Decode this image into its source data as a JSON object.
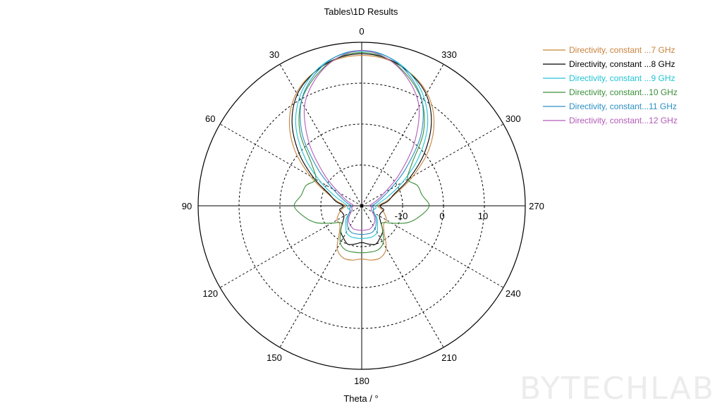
{
  "title": "Tables\\1D Results",
  "axis_label": "Theta / °",
  "watermark": "BYTECHLAB",
  "chart_data": {
    "type": "line",
    "polar": true,
    "title": "Tables\\1D Results",
    "xlabel": "Theta / °",
    "angle_ticks": [
      "0",
      "30",
      "60",
      "90",
      "120",
      "150",
      "180",
      "210",
      "240",
      "270",
      "300",
      "330"
    ],
    "angle_direction": "counter-clockwise, 0 at top",
    "radial_ticks": [
      "-10",
      "0",
      "10"
    ],
    "radial_range": [
      -20,
      20
    ],
    "legend_position": "top-right",
    "grid": true,
    "theta": [
      0,
      10,
      20,
      30,
      40,
      50,
      60,
      70,
      80,
      90,
      100,
      110,
      120,
      130,
      140,
      150,
      160,
      170,
      180,
      190,
      200,
      210,
      220,
      230,
      240,
      250,
      260,
      270,
      280,
      290,
      300,
      310,
      320,
      330,
      340,
      350
    ],
    "series": [
      {
        "name": "Directivity, constant ...7 GHz",
        "color": "#c8833c",
        "values": [
          16.8,
          16.3,
          14.6,
          11.9,
          7.5,
          1.5,
          -5.5,
          -11,
          -14,
          -16,
          -15,
          -14,
          -13,
          -13,
          -11.5,
          -8,
          -6.5,
          -6.5,
          -7,
          -6.5,
          -6.5,
          -8,
          -11.5,
          -13,
          -13,
          -14,
          -15,
          -16,
          -14,
          -11,
          -5.5,
          1.5,
          7.5,
          11.9,
          14.6,
          16.3
        ]
      },
      {
        "name": "Directivity, constant ...8 GHz",
        "color": "#000000",
        "values": [
          17.2,
          16.5,
          14.5,
          11.5,
          6.5,
          0,
          -6.5,
          -11.5,
          -13.5,
          -15.5,
          -14.5,
          -15,
          -15,
          -14,
          -12,
          -11,
          -10,
          -10.5,
          -11,
          -10.5,
          -10,
          -11,
          -12,
          -14,
          -15,
          -15,
          -14.5,
          -15.5,
          -13.5,
          -11.5,
          -6.5,
          0,
          6.5,
          11.5,
          14.5,
          16.5
        ]
      },
      {
        "name": "Directivity, constant ...9 GHz",
        "color": "#22c4d6",
        "values": [
          17.8,
          17,
          14.5,
          10.5,
          5,
          -2,
          -8.5,
          -13,
          -15.5,
          -16.5,
          -16.5,
          -17,
          -16.5,
          -15,
          -14,
          -12.5,
          -12,
          -12,
          -12,
          -12,
          -12,
          -12.5,
          -14,
          -15,
          -16.5,
          -17,
          -16.5,
          -16.5,
          -15.5,
          -13,
          -8.5,
          -2,
          5,
          10.5,
          14.5,
          17
        ]
      },
      {
        "name": "Directivity, constant...10 GHz",
        "color": "#3a8f3a",
        "values": [
          17.5,
          16.5,
          13.5,
          9.5,
          3.5,
          -4,
          -7,
          -5.5,
          -5,
          -3.5,
          -5.5,
          -8,
          -11.5,
          -13.5,
          -12,
          -9.5,
          -8.5,
          -8.5,
          -8.5,
          -8.5,
          -8.5,
          -9.5,
          -12,
          -13.5,
          -11.5,
          -8,
          -5.5,
          -3.5,
          -5,
          -5.5,
          -7,
          -4,
          3.5,
          9.5,
          13.5,
          16.5
        ]
      },
      {
        "name": "Directivity, constant...11 GHz",
        "color": "#2a8fc4",
        "values": [
          18,
          17,
          14,
          9.5,
          2.5,
          -6,
          -12,
          -15,
          -16.5,
          -17.5,
          -17,
          -17,
          -16.5,
          -15.5,
          -14.5,
          -13.5,
          -13,
          -13,
          -13,
          -13,
          -13,
          -13.5,
          -14.5,
          -15.5,
          -16.5,
          -17,
          -17,
          -17.5,
          -16.5,
          -15,
          -12,
          -6,
          2.5,
          9.5,
          14,
          17
        ]
      },
      {
        "name": "Directivity, constant...12 GHz",
        "color": "#b25ab8",
        "values": [
          18,
          16.5,
          13,
          8,
          0,
          -8,
          -13.5,
          -16,
          -17.5,
          -18,
          -17.5,
          -17.5,
          -17,
          -16,
          -15,
          -14.5,
          -14,
          -14,
          -14,
          -14,
          -14,
          -14.5,
          -15,
          -16,
          -17,
          -17.5,
          -17.5,
          -18,
          -17.5,
          -16,
          -13.5,
          -8,
          0,
          8,
          13,
          16.5
        ]
      }
    ]
  }
}
